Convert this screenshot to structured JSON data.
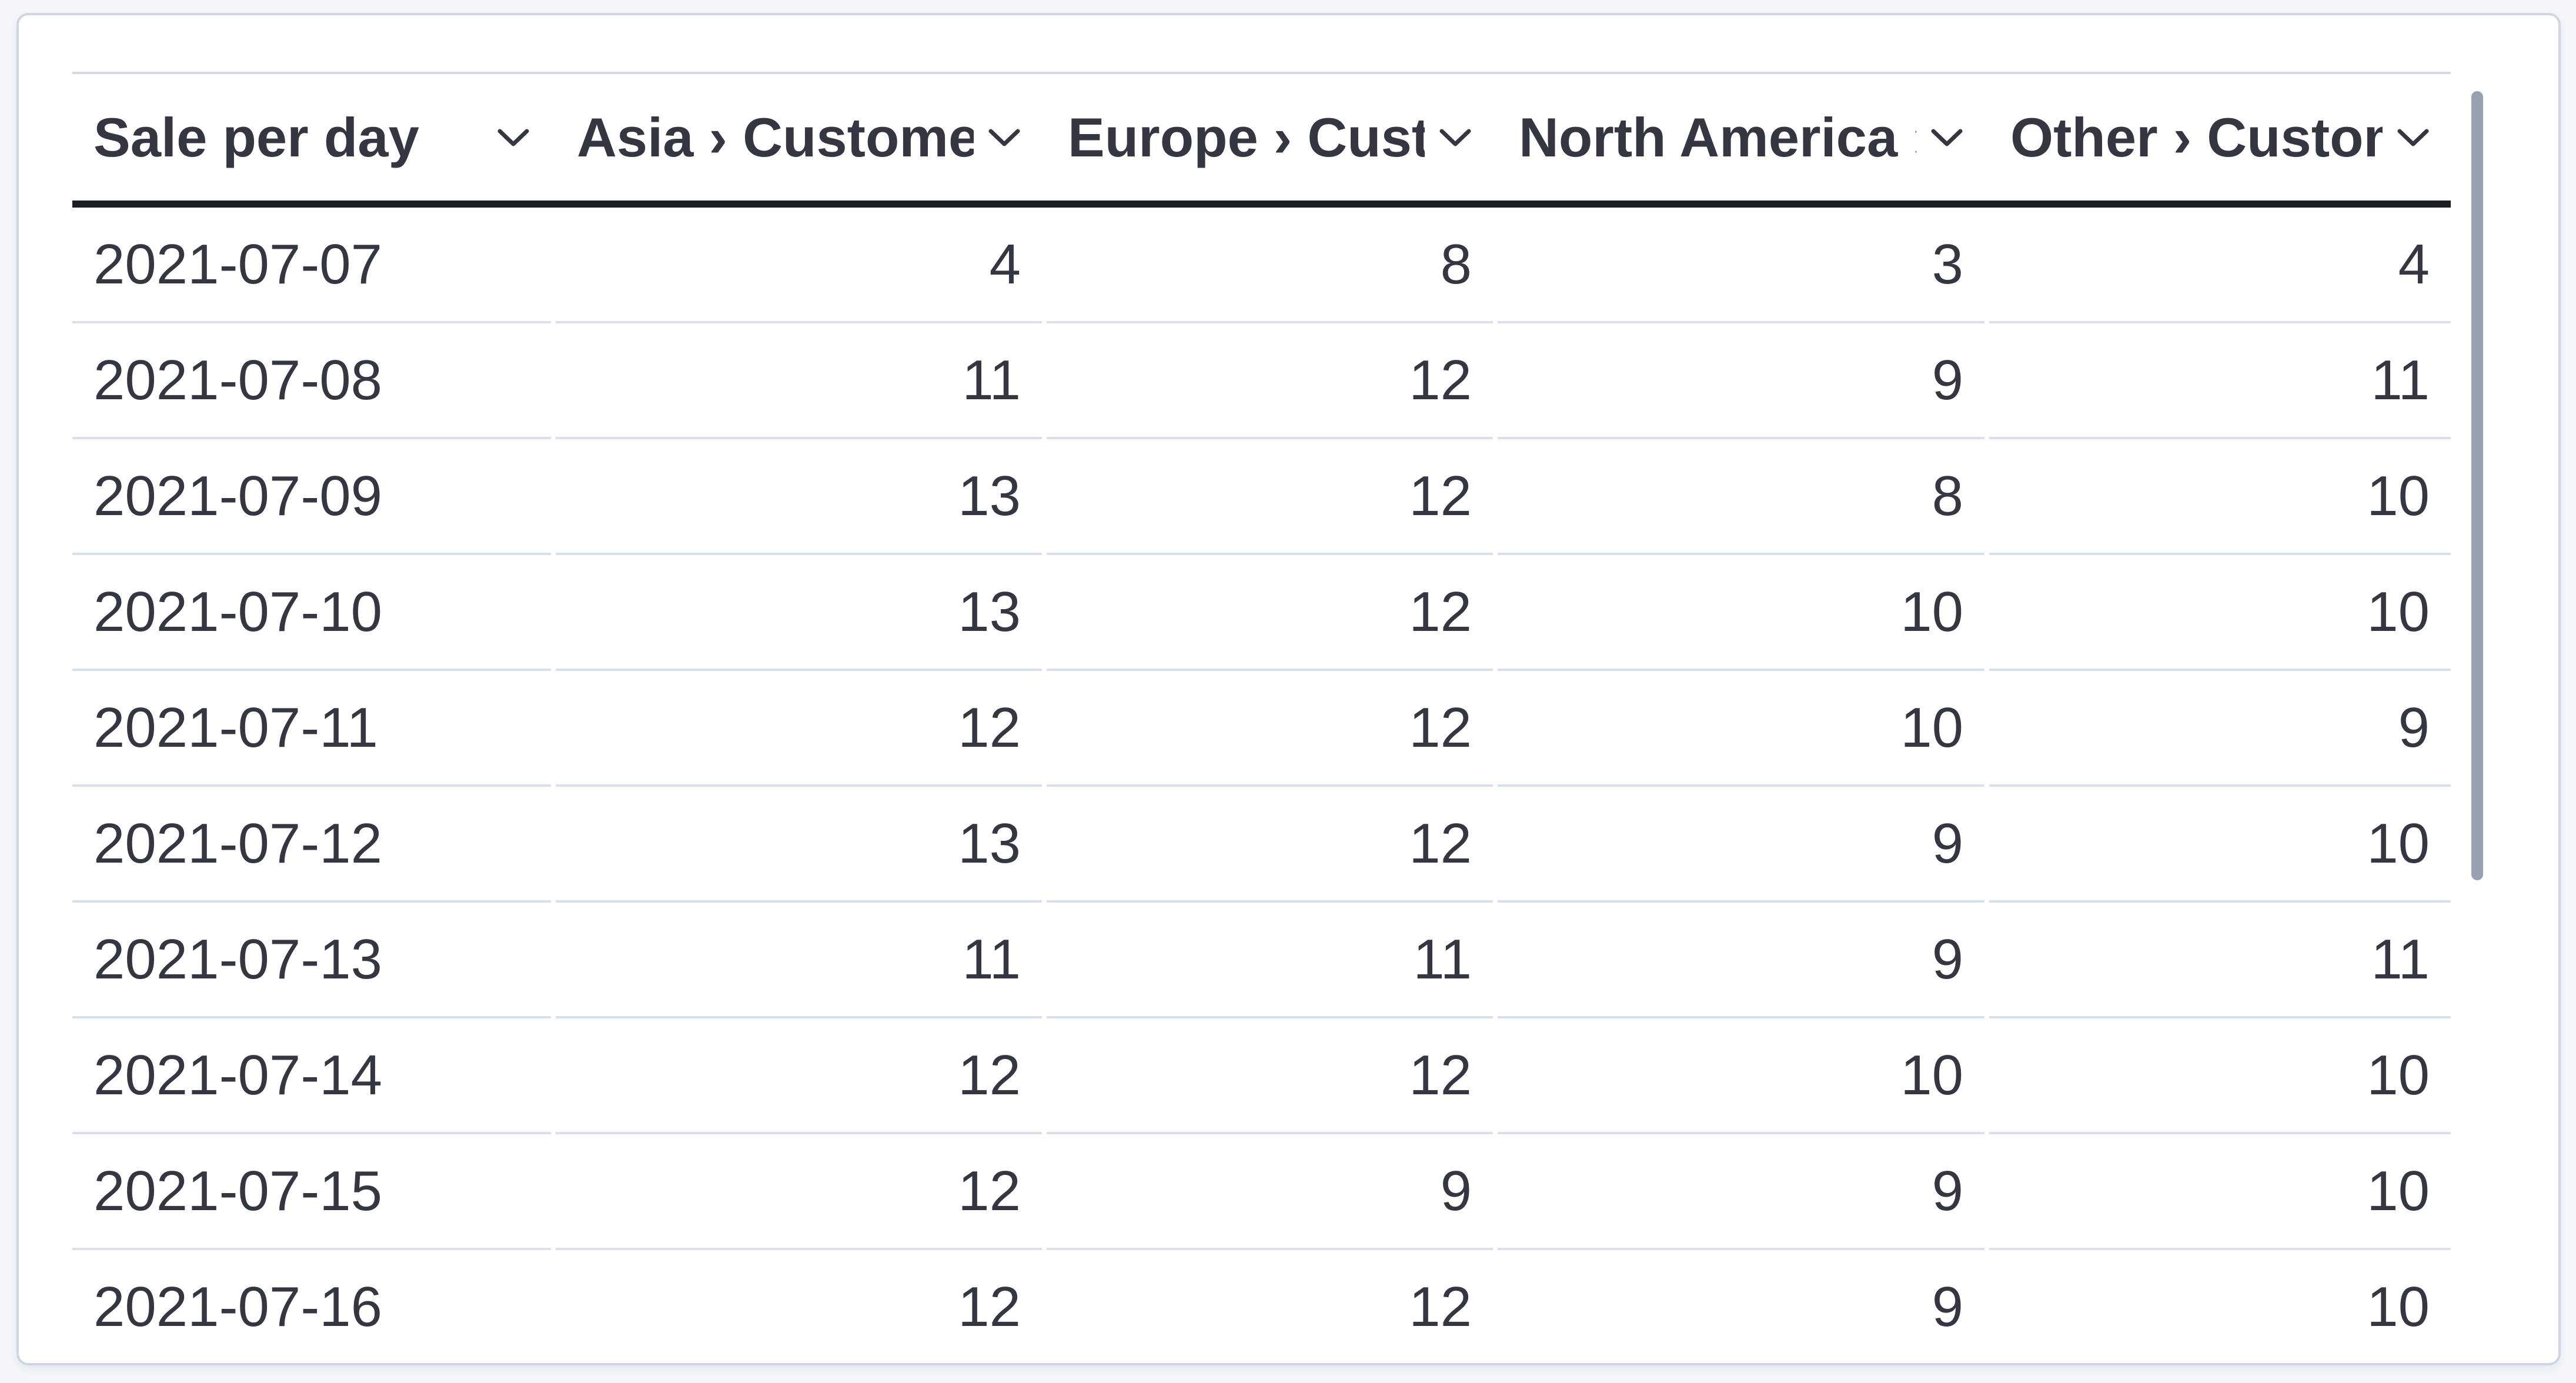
{
  "panel_title": "Sale per day",
  "table": {
    "columns": [
      {
        "id": "date",
        "label": "Sale per day"
      },
      {
        "id": "asia",
        "label": "Asia › Customers"
      },
      {
        "id": "europe",
        "label": "Europe › Customers"
      },
      {
        "id": "north_america",
        "label": "North America › Customers"
      },
      {
        "id": "other",
        "label": "Other › Customers"
      }
    ],
    "rows": [
      [
        "2021-07-07",
        "4",
        "8",
        "3",
        "4"
      ],
      [
        "2021-07-08",
        "11",
        "12",
        "9",
        "11"
      ],
      [
        "2021-07-09",
        "13",
        "12",
        "8",
        "10"
      ],
      [
        "2021-07-10",
        "13",
        "12",
        "10",
        "10"
      ],
      [
        "2021-07-11",
        "12",
        "12",
        "10",
        "9"
      ],
      [
        "2021-07-12",
        "13",
        "12",
        "9",
        "10"
      ],
      [
        "2021-07-13",
        "11",
        "11",
        "9",
        "11"
      ],
      [
        "2021-07-14",
        "12",
        "12",
        "10",
        "10"
      ],
      [
        "2021-07-15",
        "12",
        "9",
        "9",
        "10"
      ],
      [
        "2021-07-16",
        "12",
        "12",
        "9",
        "10"
      ]
    ]
  },
  "icons": {
    "column_header": "chevron-down"
  },
  "colors": {
    "page_bg": "#f4f6f9",
    "panel_bg": "#ffffff",
    "panel_border": "#cdd6e2",
    "header_rule": "#1b1e24",
    "row_divider": "#d9e0ea",
    "text": "#343741",
    "scrollbar_thumb": "#98a1b2"
  },
  "chart_data": {
    "type": "table",
    "title": "Sale per day",
    "categories": [
      "2021-07-07",
      "2021-07-08",
      "2021-07-09",
      "2021-07-10",
      "2021-07-11",
      "2021-07-12",
      "2021-07-13",
      "2021-07-14",
      "2021-07-15",
      "2021-07-16"
    ],
    "series": [
      {
        "name": "Asia › Customers",
        "values": [
          4,
          11,
          13,
          13,
          12,
          13,
          11,
          12,
          12,
          12
        ]
      },
      {
        "name": "Europe › Customers",
        "values": [
          8,
          12,
          12,
          12,
          12,
          12,
          11,
          12,
          9,
          12
        ]
      },
      {
        "name": "North America › Customers",
        "values": [
          3,
          9,
          8,
          10,
          10,
          9,
          9,
          10,
          9,
          9
        ]
      },
      {
        "name": "Other › Customers",
        "values": [
          4,
          11,
          10,
          10,
          9,
          10,
          11,
          10,
          10,
          10
        ]
      }
    ]
  }
}
